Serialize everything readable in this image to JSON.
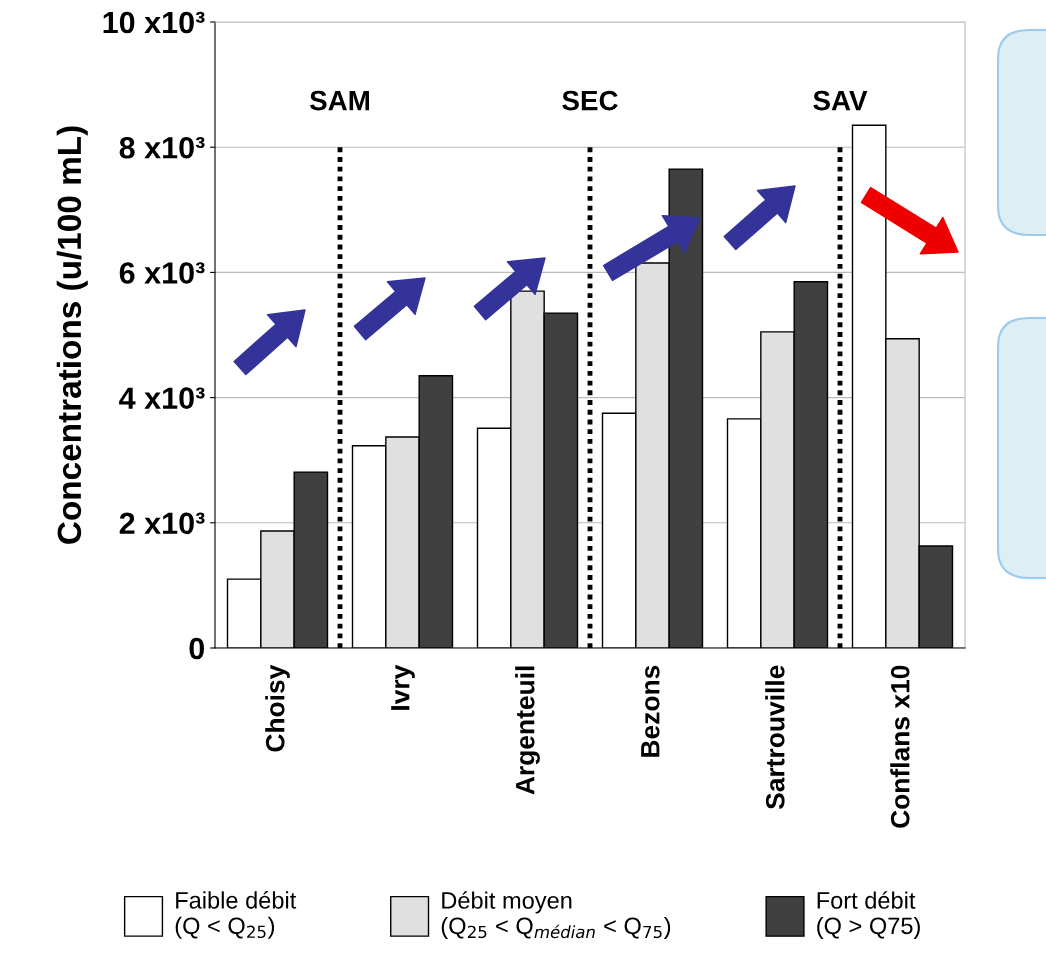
{
  "chart_data": {
    "type": "bar",
    "ylabel": "Concentrations (u/100 mL)",
    "categories": [
      "Choisy",
      "Ivry",
      "Argenteuil",
      "Bezons",
      "Sartrouville",
      "Conflans x10"
    ],
    "series": [
      {
        "name": "Faible débit\n(Q < Q$_{25}$)",
        "color": "#ffffff",
        "values": [
          1100,
          3230,
          3510,
          3750,
          3660,
          8350
        ]
      },
      {
        "name": "Débit moyen\n(Q$_{25}$ < Q$_{médian}$ < Q$_{75}$)",
        "color": "#e0e0e0",
        "values": [
          1870,
          3370,
          5700,
          6150,
          5050,
          4940
        ]
      },
      {
        "name": "Fort débit\n(Q > Q75)",
        "color": "#404040",
        "values": [
          2810,
          4350,
          5350,
          7650,
          5850,
          1630
        ]
      }
    ],
    "ylim": [
      0,
      10000
    ],
    "yticks": [
      0,
      {
        "value": 2000,
        "label": "2 x10³"
      },
      {
        "value": 4000,
        "label": "4 x10³"
      },
      {
        "value": 6000,
        "label": "6 x10³"
      },
      {
        "value": 8000,
        "label": "8 x10³"
      },
      {
        "value": 10000,
        "label": "10 x10³"
      }
    ],
    "grid": "y",
    "legend": "bottom",
    "annotations": [
      "SAM",
      "SEC",
      "SAV"
    ]
  }
}
